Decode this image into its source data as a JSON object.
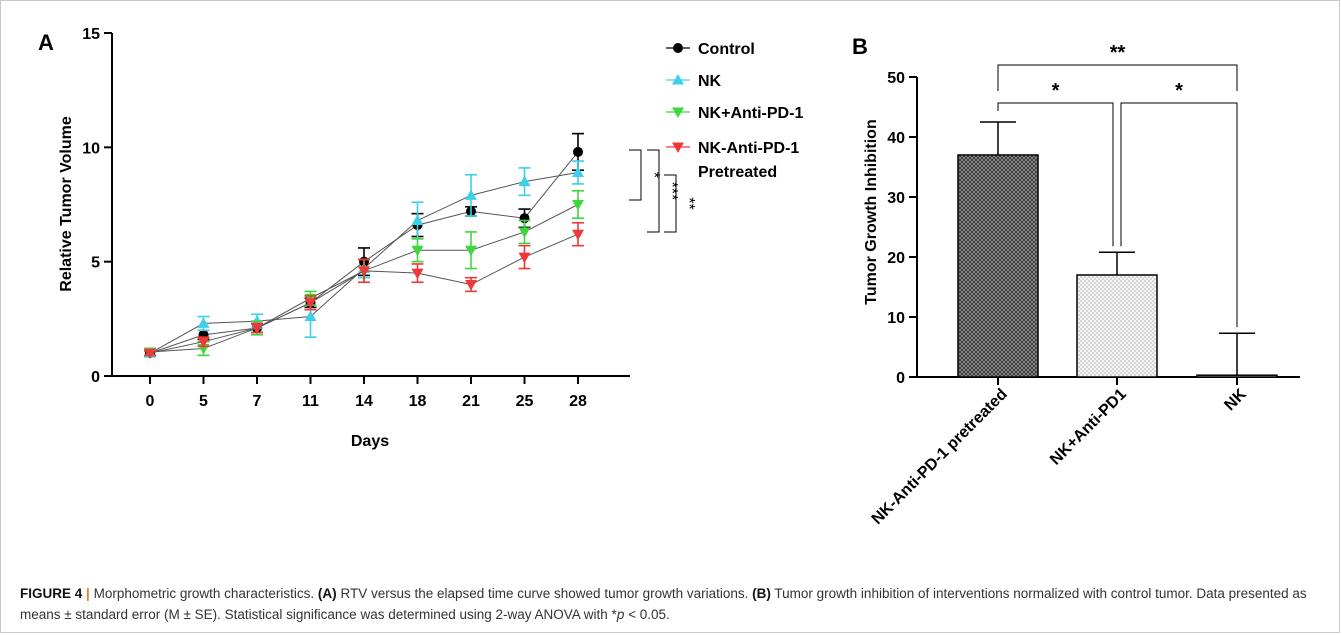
{
  "panel_a": {
    "label": "A",
    "chart_data": {
      "type": "line",
      "xlabel": "Days",
      "ylabel": "Relative Tumor Volume",
      "x": [
        0,
        5,
        7,
        11,
        14,
        18,
        21,
        25,
        28
      ],
      "ylim": [
        0,
        15
      ],
      "yticks": [
        0,
        5,
        10,
        15
      ],
      "grid": false,
      "legend": "top-right",
      "series": [
        {
          "name": "Control",
          "marker": "circle",
          "color": "#000000",
          "values": [
            1.0,
            1.8,
            2.1,
            3.2,
            5.0,
            6.6,
            7.2,
            6.9,
            9.8
          ],
          "errors": [
            0.1,
            0.2,
            0.2,
            0.2,
            0.6,
            0.5,
            0.2,
            0.4,
            0.8
          ]
        },
        {
          "name": "NK",
          "marker": "triangle-up",
          "color": "#3cd1e8",
          "values": [
            1.0,
            2.3,
            2.4,
            2.6,
            4.7,
            6.8,
            7.9,
            8.5,
            8.9
          ],
          "errors": [
            0.15,
            0.3,
            0.3,
            0.9,
            0.4,
            0.8,
            0.9,
            0.6,
            0.5
          ]
        },
        {
          "name": "NK+Anti-PD-1",
          "marker": "triangle-down",
          "color": "#3ed83e",
          "values": [
            1.05,
            1.2,
            2.1,
            3.4,
            4.6,
            5.5,
            5.5,
            6.3,
            7.5
          ],
          "errors": [
            0.15,
            0.3,
            0.3,
            0.3,
            0.5,
            0.5,
            0.8,
            0.5,
            0.6
          ]
        },
        {
          "name": "NK-Anti-PD-1 Pretreated",
          "name_lines": [
            "NK-Anti-PD-1",
            "Pretreated"
          ],
          "marker": "triangle-down",
          "color": "#f03838",
          "values": [
            1.0,
            1.5,
            2.1,
            3.2,
            4.6,
            4.5,
            4.0,
            5.2,
            6.2
          ],
          "errors": [
            0.1,
            0.2,
            0.2,
            0.3,
            0.5,
            0.4,
            0.3,
            0.5,
            0.5
          ]
        }
      ],
      "annotations": [
        "*",
        "***",
        "**"
      ]
    }
  },
  "panel_b": {
    "label": "B",
    "chart_data": {
      "type": "bar",
      "categories": [
        "NK-Anti-PD-1 pretreated",
        "NK+Anti-PD1",
        "NK"
      ],
      "values": [
        37,
        17,
        0.3
      ],
      "errors": [
        5.5,
        3.8,
        7.0
      ],
      "ylabel": "Tumor Growth Inhibition",
      "ylim": [
        0,
        50
      ],
      "yticks": [
        0,
        10,
        20,
        30,
        40,
        50
      ],
      "patterns": [
        "crosshatch-dark",
        "dots-light",
        "none"
      ],
      "significance": [
        {
          "from": 0,
          "to": 2,
          "label": "**"
        },
        {
          "from": 0,
          "to": 1,
          "label": "*"
        },
        {
          "from": 1,
          "to": 2,
          "label": "*"
        }
      ]
    }
  },
  "caption": {
    "figure": "FIGURE 4",
    "separator": "|",
    "title": "Morphometric growth characteristics.",
    "a_tag": "(A)",
    "a_text": "RTV versus the elapsed time curve showed tumor growth variations.",
    "b_tag": "(B)",
    "b_text": "Tumor growth inhibition of interventions normalized with control tumor. Data presented as means ± standard error (M ± SE). Statistical significance was determined using 2-way ANOVA with *",
    "p_symbol": "p",
    "p_text": " < 0.05."
  }
}
